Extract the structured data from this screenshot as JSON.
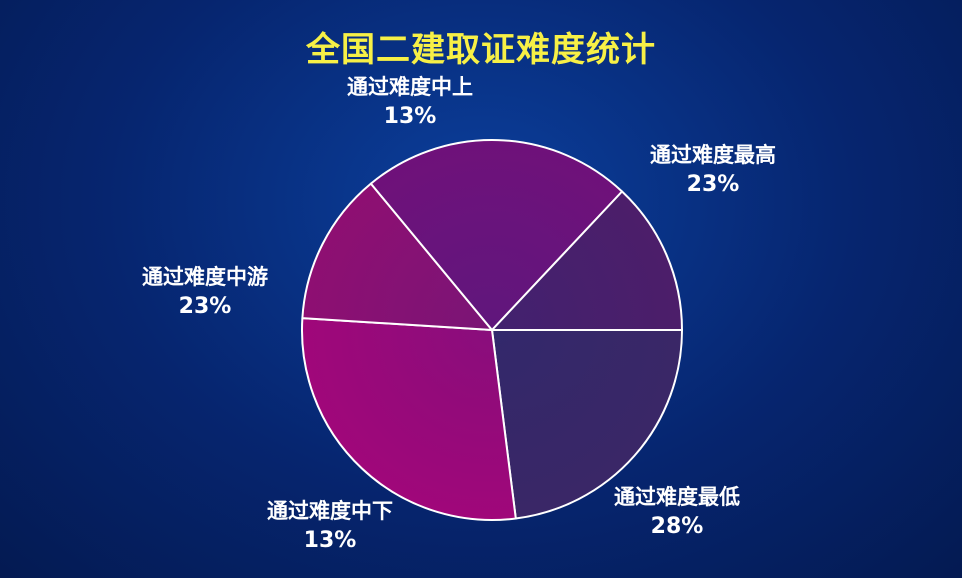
{
  "chart_data": {
    "type": "pie",
    "title": "全国二建取证难度统计",
    "slices": [
      {
        "label": "通过难度最高",
        "value": 23,
        "value_label": "23%",
        "color": "#3a2767"
      },
      {
        "label": "通过难度最低",
        "value": 28,
        "value_label": "28%",
        "color": "#a0077a"
      },
      {
        "label": "通过难度中下",
        "value": 13,
        "value_label": "13%",
        "color": "#8e0f72"
      },
      {
        "label": "通过难度中游",
        "value": 23,
        "value_label": "23%",
        "color": "#6f117a"
      },
      {
        "label": "通过难度中上",
        "value": 13,
        "value_label": "13%",
        "color": "#4c1e6a"
      }
    ],
    "start_angle_deg": 0,
    "direction": "clockwise",
    "legend": "none",
    "colors": {
      "title": "#f7f046",
      "label": "#ffffff",
      "slice_border": "#ffffff",
      "background": "#06256f"
    }
  }
}
